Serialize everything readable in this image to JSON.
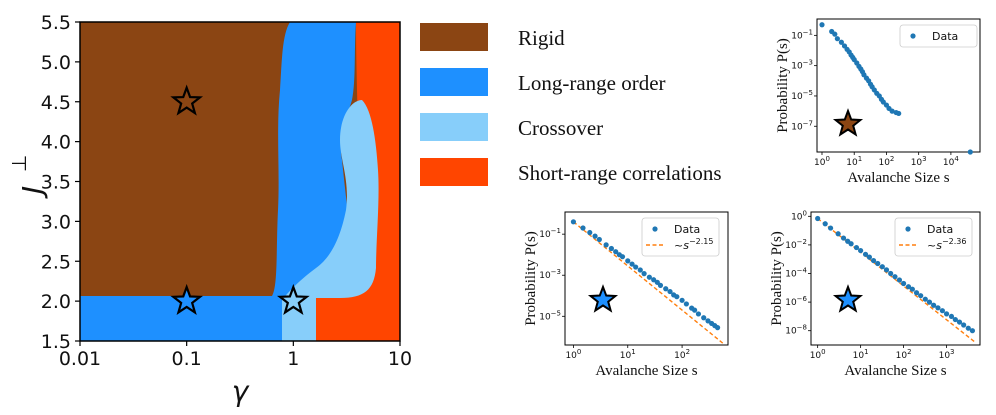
{
  "chart_data": [
    {
      "type": "heatmap",
      "xlabel": "γ",
      "ylabel": "J",
      "ylabel_superscript": "⊥",
      "x_scale": "log",
      "xlim": [
        0.01,
        10
      ],
      "ylim": [
        1.5,
        5.5
      ],
      "x_ticks": [
        "0.01",
        "0.1",
        "1",
        "10"
      ],
      "y_ticks": [
        "1.5",
        "2.0",
        "2.5",
        "3.0",
        "3.5",
        "4.0",
        "4.5",
        "5.0",
        "5.5"
      ],
      "regions": [
        {
          "name": "Rigid",
          "color": "#8B4513"
        },
        {
          "name": "Long-range order",
          "color": "#1E90FF"
        },
        {
          "name": "Crossover",
          "color": "#87CEFA"
        },
        {
          "name": "Short-range correlations",
          "color": "#FF4500"
        }
      ],
      "markers": [
        {
          "gamma": 0.1,
          "J": 4.5,
          "fill": "#8B4513"
        },
        {
          "gamma": 0.1,
          "J": 2.0,
          "fill": "#1E90FF"
        },
        {
          "gamma": 1.0,
          "J": 2.0,
          "fill": "#87CEFA"
        }
      ]
    },
    {
      "type": "scatter",
      "xlabel": "Avalanche Size s",
      "ylabel": "Probability P(s)",
      "x_scale": "log",
      "y_scale": "log",
      "xlim": [
        0.7,
        80000
      ],
      "ylim": [
        2e-09,
        1.2
      ],
      "x_ticks": [
        "10^0",
        "10^1",
        "10^2",
        "10^3",
        "10^4"
      ],
      "y_ticks": [
        "10^-1",
        "10^-3",
        "10^-5",
        "10^-7"
      ],
      "legend": [
        "Data"
      ],
      "marker_fill": "#8B4513",
      "series": [
        {
          "name": "Data",
          "points": [
            [
              1,
              0.5
            ],
            [
              2,
              0.18
            ],
            [
              2.5,
              0.12
            ],
            [
              3,
              0.06
            ],
            [
              4,
              0.035
            ],
            [
              5,
              0.02
            ],
            [
              6,
              0.012
            ],
            [
              7,
              0.008
            ],
            [
              8,
              0.005
            ],
            [
              9,
              0.0035
            ],
            [
              10,
              0.0025
            ],
            [
              12,
              0.0015
            ],
            [
              14,
              0.0009
            ],
            [
              16,
              0.0006
            ],
            [
              18,
              0.0004
            ],
            [
              20,
              0.00025
            ],
            [
              24,
              0.00015
            ],
            [
              28,
              0.0001
            ],
            [
              32,
              6e-05
            ],
            [
              36,
              4e-05
            ],
            [
              42,
              2.5e-05
            ],
            [
              50,
              1.5e-05
            ],
            [
              60,
              1e-05
            ],
            [
              70,
              6e-06
            ],
            [
              80,
              4e-06
            ],
            [
              100,
              2.5e-06
            ],
            [
              120,
              1.5e-06
            ],
            [
              150,
              1e-06
            ],
            [
              200,
              8e-07
            ],
            [
              240,
              7e-07
            ],
            [
              40000,
              2e-09
            ]
          ]
        }
      ]
    },
    {
      "type": "scatter",
      "xlabel": "Avalanche Size s",
      "ylabel": "Probability P(s)",
      "x_scale": "log",
      "y_scale": "log",
      "xlim": [
        0.7,
        700
      ],
      "ylim": [
        4e-07,
        1.2
      ],
      "x_ticks": [
        "10^0",
        "10^1",
        "10^2"
      ],
      "y_ticks": [
        "10^-1",
        "10^-3",
        "10^-5"
      ],
      "legend": [
        "Data",
        "~s^-2.15"
      ],
      "fit_exponent": -2.15,
      "marker_fill": "#1E90FF",
      "series": [
        {
          "name": "Data",
          "points": [
            [
              1,
              0.4
            ],
            [
              1.5,
              0.2
            ],
            [
              2,
              0.12
            ],
            [
              2.5,
              0.08
            ],
            [
              3,
              0.055
            ],
            [
              4,
              0.03
            ],
            [
              5,
              0.02
            ],
            [
              6,
              0.014
            ],
            [
              7,
              0.01
            ],
            [
              8,
              0.008
            ],
            [
              10,
              0.005
            ],
            [
              12,
              0.0035
            ],
            [
              14,
              0.0025
            ],
            [
              17,
              0.0018
            ],
            [
              20,
              0.0012
            ],
            [
              25,
              0.0008
            ],
            [
              30,
              0.0006
            ],
            [
              35,
              0.00045
            ],
            [
              40,
              0.00032
            ],
            [
              50,
              0.00022
            ],
            [
              60,
              0.00016
            ],
            [
              70,
              0.00011
            ],
            [
              80,
              9e-05
            ],
            [
              100,
              6e-05
            ],
            [
              120,
              4e-05
            ],
            [
              150,
              2.5e-05
            ],
            [
              170,
              2e-05
            ],
            [
              200,
              1.3e-05
            ],
            [
              250,
              8.5e-06
            ],
            [
              300,
              6e-06
            ],
            [
              350,
              4.5e-06
            ],
            [
              400,
              3.5e-06
            ],
            [
              450,
              2.8e-06
            ]
          ]
        }
      ]
    },
    {
      "type": "scatter",
      "xlabel": "Avalanche Size s",
      "ylabel": "Probability P(s)",
      "x_scale": "log",
      "y_scale": "log",
      "xlim": [
        0.7,
        6000
      ],
      "ylim": [
        1e-09,
        2
      ],
      "x_ticks": [
        "10^0",
        "10^1",
        "10^2",
        "10^3"
      ],
      "y_ticks": [
        "10^0",
        "10^-2",
        "10^-4",
        "10^-6",
        "10^-8"
      ],
      "legend": [
        "Data",
        "~s^-2.36"
      ],
      "fit_exponent": -2.36,
      "marker_fill": "#1E90FF",
      "series": [
        {
          "name": "Data",
          "points": [
            [
              1,
              0.7
            ],
            [
              1.5,
              0.3
            ],
            [
              2,
              0.15
            ],
            [
              3,
              0.06
            ],
            [
              4,
              0.03
            ],
            [
              5,
              0.018
            ],
            [
              6,
              0.012
            ],
            [
              8,
              0.0065
            ],
            [
              10,
              0.004
            ],
            [
              13,
              0.0022
            ],
            [
              16,
              0.0014
            ],
            [
              20,
              0.0008
            ],
            [
              25,
              0.0005
            ],
            [
              32,
              0.0003
            ],
            [
              40,
              0.00018
            ],
            [
              50,
              0.0001
            ],
            [
              63,
              6e-05
            ],
            [
              80,
              3.5e-05
            ],
            [
              100,
              2e-05
            ],
            [
              130,
              1.2e-05
            ],
            [
              160,
              8e-06
            ],
            [
              200,
              4.5e-06
            ],
            [
              250,
              2.8e-06
            ],
            [
              320,
              1.6e-06
            ],
            [
              400,
              1e-06
            ],
            [
              500,
              6e-07
            ],
            [
              630,
              4e-07
            ],
            [
              800,
              2.5e-07
            ],
            [
              1000,
              1.5e-07
            ],
            [
              1300,
              1e-07
            ],
            [
              1600,
              6e-08
            ],
            [
              2000,
              4e-08
            ],
            [
              2500,
              2.5e-08
            ],
            [
              3200,
              1.5e-08
            ],
            [
              4000,
              1e-08
            ]
          ]
        }
      ]
    }
  ]
}
